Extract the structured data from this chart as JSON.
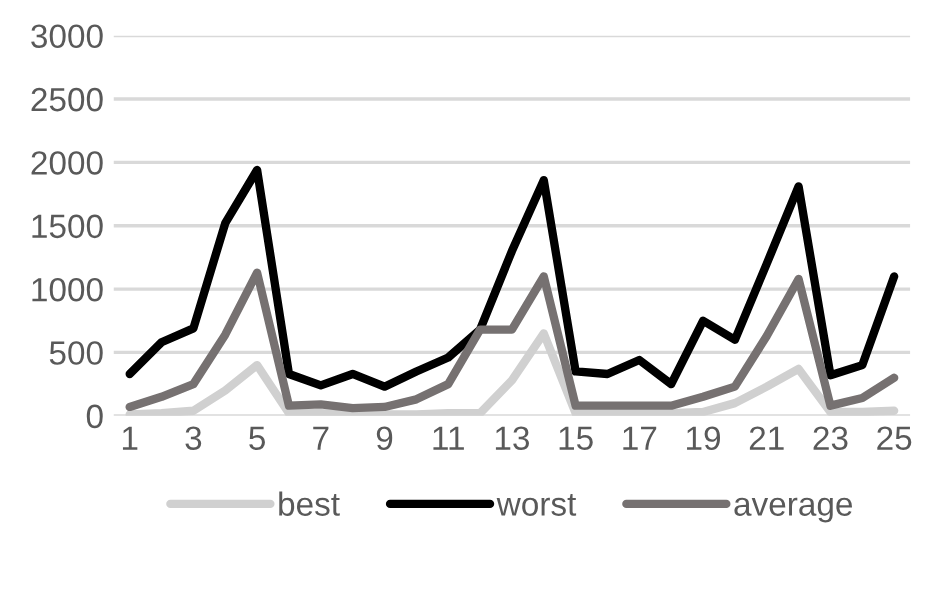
{
  "chart_data": {
    "type": "line",
    "categories": [
      "1",
      null,
      "3",
      null,
      "5",
      null,
      "7",
      null,
      "9",
      null,
      "11",
      null,
      "13",
      null,
      "15",
      null,
      "17",
      null,
      "19",
      null,
      "21",
      null,
      "23",
      null,
      "25"
    ],
    "series": [
      {
        "name": "best",
        "color": "#d0d0d0",
        "values": [
          10,
          20,
          40,
          200,
          400,
          20,
          20,
          10,
          10,
          10,
          20,
          20,
          280,
          650,
          20,
          20,
          20,
          20,
          30,
          100,
          230,
          370,
          30,
          30,
          40
        ]
      },
      {
        "name": "worst",
        "color": "#000000",
        "values": [
          330,
          580,
          690,
          1520,
          1940,
          330,
          240,
          330,
          230,
          350,
          460,
          680,
          1300,
          1860,
          350,
          330,
          440,
          250,
          750,
          600,
          1200,
          1810,
          320,
          400,
          1100
        ]
      },
      {
        "name": "average",
        "color": "#767171",
        "values": [
          70,
          150,
          250,
          640,
          1130,
          80,
          90,
          60,
          70,
          130,
          250,
          680,
          680,
          1100,
          80,
          80,
          80,
          80,
          150,
          230,
          630,
          1080,
          80,
          140,
          300
        ]
      }
    ],
    "ylim": [
      0,
      3000
    ],
    "yticks": [
      0,
      500,
      1000,
      1500,
      2000,
      2500,
      3000
    ],
    "grid": "y",
    "legend": "bottom",
    "marker": "none",
    "line_style": "solid"
  }
}
